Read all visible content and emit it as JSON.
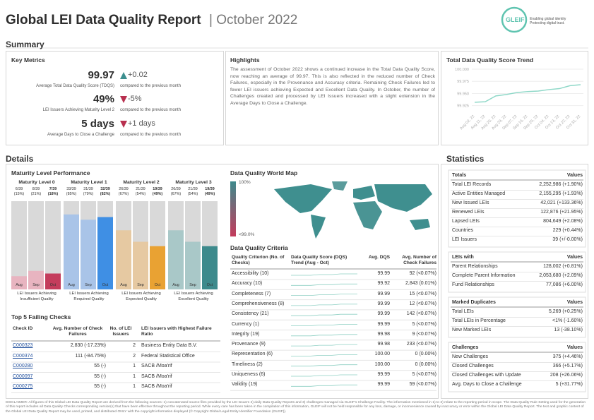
{
  "header": {
    "title": "Global LEI Data Quality Report",
    "period": "| October 2022",
    "logo": "GLEIF",
    "tagline": [
      "Enabling global identity",
      "Protecting digital trust."
    ]
  },
  "summary": {
    "title": "Summary",
    "key_metrics": {
      "title": "Key Metrics",
      "items": [
        {
          "value": "99.97",
          "change": "+0.02",
          "direction": "up",
          "label": "Average Total Data Quality Score (TDQS)",
          "note": "compared to the previous month"
        },
        {
          "value": "49%",
          "change": "-5%",
          "direction": "down",
          "label": "LEI Issuers Achieving Maturity Level 2",
          "note": "compared to the previous month"
        },
        {
          "value": "5 days",
          "change": "+1 days",
          "direction": "down",
          "label": "Average Days to Close a Challenge",
          "note": "compared to the previous month"
        }
      ]
    },
    "highlights": {
      "title": "Highlights",
      "text": "The assessment of October 2022 shows a continued increase in the Total Data Quality Score, now reaching an average of 99.97. This is also reflected in the reduced number of Check Failures, especially in the Provenance and Accuracy criteria. Remaining Check Failures led to fewer LEI issuers achieving Expected and Excellent Data Quality. In October, the number of Challenges created and processed by LEI Issuers increased with a slight extension in the Average Days to Close a Challenge."
    }
  },
  "chart_data": [
    {
      "type": "line",
      "title": "Total Data Quality Score Trend",
      "x": [
        "Aug 02, 22",
        "Aug 11, 22",
        "Aug 20, 22",
        "Aug 29, 22",
        "Sep 07, 22",
        "Sep 16, 22",
        "Sep 25, 22",
        "Oct 04, 22",
        "Oct 13, 22",
        "Oct 22, 22",
        "Oct 31, 22"
      ],
      "values": [
        99.932,
        99.933,
        99.945,
        99.948,
        99.952,
        99.954,
        99.955,
        99.958,
        99.96,
        99.966,
        99.968
      ],
      "color": "#8fd8c8",
      "ylim": [
        99.91,
        100.0
      ],
      "yticks": [
        {
          "value": 100,
          "label": "100.000"
        },
        99.975,
        {
          "value": 99.95,
          "label": "99.950"
        },
        99.925
      ],
      "grid": true
    },
    {
      "type": "bar",
      "title": "Maturity Level Performance",
      "ylim": [
        0,
        100
      ],
      "panels": [
        {
          "title": "Maturity Level 0",
          "categories": [
            "Aug",
            "Sep",
            "Oct"
          ],
          "values": [
            15,
            21,
            18
          ],
          "value_labels": [
            "6/39 (15%)",
            "8/39 (21%)",
            "7/39 (18%)"
          ],
          "colors": [
            "#e8b4c0",
            "#e8b4c0",
            "#c43c5c"
          ],
          "caption": "LEI Issuers Achieving Insufficient Quality"
        },
        {
          "title": "Maturity Level 1",
          "categories": [
            "Aug",
            "Sep",
            "Oct"
          ],
          "values": [
            85,
            79,
            82
          ],
          "value_labels": [
            "33/39 (85%)",
            "31/39 (79%)",
            "32/39 (82%)"
          ],
          "colors": [
            "#a9c4e8",
            "#a9c4e8",
            "#3f8fe4"
          ],
          "caption": "LEI Issuers Achieving Required Quality"
        },
        {
          "title": "Maturity Level 2",
          "categories": [
            "Aug",
            "Sep",
            "Oct"
          ],
          "values": [
            67,
            54,
            49
          ],
          "value_labels": [
            "26/39 (67%)",
            "21/39 (54%)",
            "19/39 (49%)"
          ],
          "colors": [
            "#e6c9a2",
            "#e6c9a2",
            "#e9a233"
          ],
          "caption": "LEI Issuers Achieving Expected Quality"
        },
        {
          "title": "Maturity Level 3",
          "categories": [
            "Aug",
            "Sep",
            "Oct"
          ],
          "values": [
            67,
            54,
            49
          ],
          "value_labels": [
            "26/39 (67%)",
            "21/39 (54%)",
            "19/39 (49%)"
          ],
          "colors": [
            "#a9c8c8",
            "#a9c8c8",
            "#3d8a8c"
          ],
          "caption": "LEI Issuers Achieving Excellent Quality"
        }
      ]
    }
  ],
  "details": {
    "title": "Details",
    "world_map": {
      "title": "Data Quality World Map",
      "legend_max": "100%",
      "legend_min": "<99.0%"
    },
    "criteria": {
      "title": "Data Quality Criteria",
      "columns": [
        "Quality Criterion (No. of Checks)",
        "Data Quality Score (DQS) Trend (Aug - Oct)",
        "Avg. DQS",
        "Avg. Number of Check Failures"
      ],
      "rows": [
        [
          "Accessibility (10)",
          "99.99",
          "92 (<0.07%)"
        ],
        [
          "Accuracy (10)",
          "99.92",
          "2,843 (0.01%)"
        ],
        [
          "Completeness (7)",
          "99.99",
          "15 (<0.07%)"
        ],
        [
          "Comprehensiveness (8)",
          "99.99",
          "12 (<0.07%)"
        ],
        [
          "Consistency (21)",
          "99.99",
          "142 (<0.07%)"
        ],
        [
          "Currency (1)",
          "99.99",
          "5 (<0.07%)"
        ],
        [
          "Integrity (19)",
          "99.98",
          "9 (<0.07%)"
        ],
        [
          "Provenance (9)",
          "99.98",
          "233 (<0.07%)"
        ],
        [
          "Representation (6)",
          "100.00",
          "0 (0.00%)"
        ],
        [
          "Timeliness (2)",
          "100.00",
          "0 (0.00%)"
        ],
        [
          "Uniqueness (6)",
          "99.99",
          "5 (<0.07%)"
        ],
        [
          "Validity (19)",
          "99.99",
          "59 (<0.07%)"
        ]
      ]
    },
    "failing": {
      "title": "Top 5 Failing Checks",
      "columns": [
        "Check ID",
        "Avg. Number of Check Failures",
        "No. of LEI Issuers",
        "LEI Issuers with Highest Failure Ratio"
      ],
      "rows": [
        [
          "C000323",
          "2,830 (-17.23%)",
          "2",
          "Business Entity Data B.V."
        ],
        [
          "C000374",
          "111 (-84.75%)",
          "2",
          "Federal Statistical Office"
        ],
        [
          "C000280",
          "55 (-)",
          "1",
          "SACB /Moa'rif"
        ],
        [
          "C000097",
          "55 (-)",
          "1",
          "SACB /Moa'rif"
        ],
        [
          "C000275",
          "55 (-)",
          "1",
          "SACB /Moa'rif"
        ]
      ]
    }
  },
  "statistics": {
    "title": "Statistics",
    "groups": [
      {
        "name": "Totals",
        "head": "Values",
        "rows": [
          [
            "Total LEI Records",
            "2,252,986 (+1.90%)"
          ],
          [
            "Active Entities Managed",
            "2,155,295 (+1.93%)"
          ],
          [
            "New Issued LEIs",
            "42,021 (+133.36%)"
          ],
          [
            "Renewed LEIs",
            "122,876 (+21.95%)"
          ],
          [
            "Lapsed LEIs",
            "804,649 (+2.08%)"
          ],
          [
            "Countries",
            "229 (+0.44%)"
          ],
          [
            "LEI Issuers",
            "39 (+/-0.00%)"
          ]
        ]
      },
      {
        "name": "LEIs with",
        "head": "Values",
        "rows": [
          [
            "Parent Relationships",
            "128,002 (+0.81%)"
          ],
          [
            "Complete Parent Information",
            "2,053,680 (+2.09%)"
          ],
          [
            "Fund Relationships",
            "77,086 (+6.00%)"
          ]
        ]
      },
      {
        "name": "Marked Duplicates",
        "head": "Values",
        "rows": [
          [
            "Total LEIs",
            "5,269 (+0.25%)"
          ],
          [
            "Total LEIs in Percentage",
            "<1% (-1.60%)"
          ],
          [
            "New Marked LEIs",
            "13 (-38.10%)"
          ]
        ]
      },
      {
        "name": "Challenges",
        "head": "Values",
        "rows": [
          [
            "New Challenges",
            "375 (+4.46%)"
          ],
          [
            "Closed Challenges",
            "366 (+5.17%)"
          ],
          [
            "Closed Challenges with Update",
            "208 (+26.06%)"
          ],
          [
            "Avg. Days to Close a Challenge",
            "5 (+31.77%)"
          ]
        ]
      }
    ]
  },
  "disclaimer": "DISCLAIMER: All figures of this Global LEI Data Quality Report are derived from the following sources: 1) concatenated source files provided by the LEI Issuers 2) daily Data Quality Reports and 3) challenges managed via GLEIF's Challenge Facility. The information mentioned in 1) to 3) relate to the reporting period in scope. The Data Quality Rule Setting used for the generation of this report includes all Data Quality Checks corresponding version(s) that have been effective throughout the reporting period. While every care has been taken in the compilation of this information, GLEIF will not be held responsible for any loss, damage, or inconvenience caused by inaccuracy or error within the Global LEI Data Quality Report. The text and graphic content of the Global LEI Data Quality Report may be used, printed, and distributed ONLY with the copyright information displayed (© Copyright Global Legal Entity Identifier Foundation (GLEIF))."
}
